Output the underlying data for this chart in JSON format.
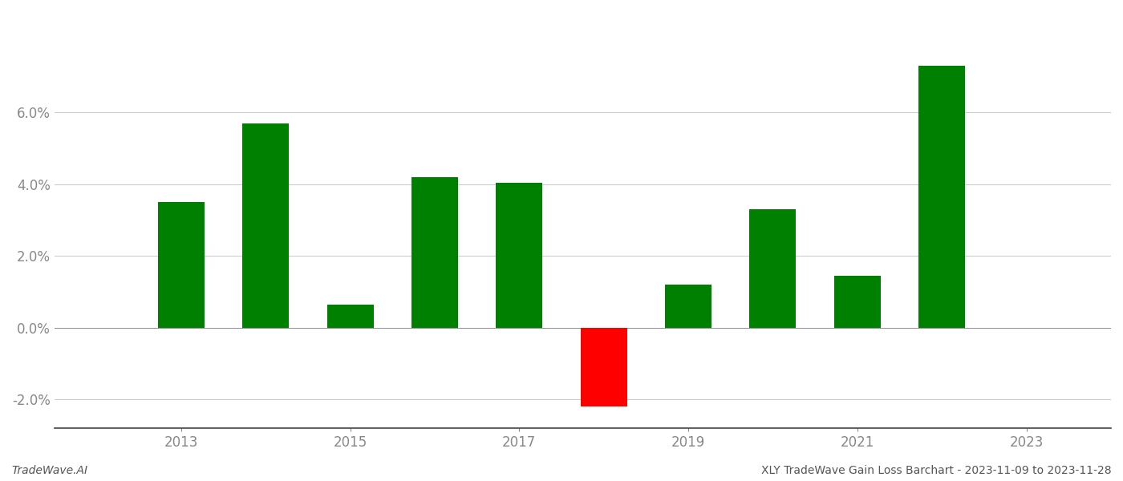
{
  "years": [
    2013,
    2014,
    2015,
    2016,
    2017,
    2018,
    2019,
    2020,
    2021,
    2022
  ],
  "values": [
    0.035,
    0.057,
    0.0065,
    0.042,
    0.0405,
    -0.022,
    0.012,
    0.033,
    0.0145,
    0.073
  ],
  "colors": [
    "#008000",
    "#008000",
    "#008000",
    "#008000",
    "#008000",
    "#ff0000",
    "#008000",
    "#008000",
    "#008000",
    "#008000"
  ],
  "ylim": [
    -0.028,
    0.088
  ],
  "yticks": [
    -0.02,
    0.0,
    0.02,
    0.04,
    0.06
  ],
  "xtick_positions": [
    2013,
    2015,
    2017,
    2019,
    2021,
    2023
  ],
  "xlim": [
    2011.5,
    2024.0
  ],
  "footer_left": "TradeWave.AI",
  "footer_right": "XLY TradeWave Gain Loss Barchart - 2023-11-09 to 2023-11-28",
  "background_color": "#ffffff",
  "grid_color": "#cccccc",
  "bar_width": 0.55
}
